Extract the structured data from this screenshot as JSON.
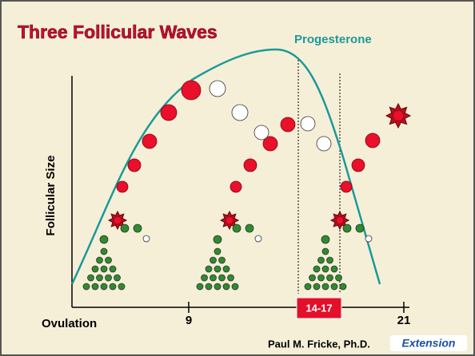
{
  "header": {
    "title": "Three Follicular Waves"
  },
  "labels": {
    "curve": "Progesterone",
    "y_axis": "Follicular Size",
    "start": "Ovulation",
    "day_mid": "9",
    "day_end": "21",
    "window": "14-17"
  },
  "footer": {
    "author": "Paul M. Fricke, Ph.D.",
    "logo": "Extension"
  }
}
